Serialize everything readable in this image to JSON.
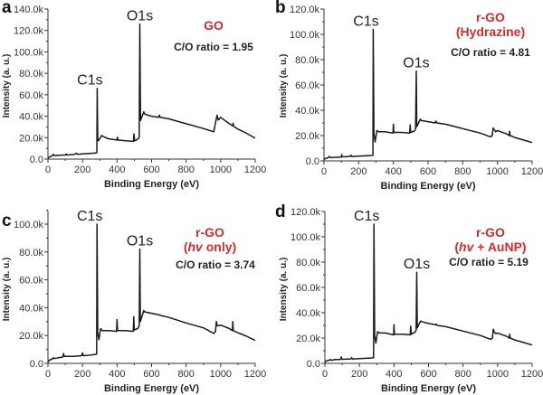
{
  "chart_data": [
    {
      "type": "line",
      "panel": "a",
      "title": "GO",
      "title_lines": [
        "GO"
      ],
      "annotation": "C/O ratio = 1.95",
      "xlabel": "Binding Energy (eV)",
      "ylabel": "Intensity (a. u.)",
      "xlim": [
        0,
        1200
      ],
      "ylim": [
        0,
        140000
      ],
      "xticks": [
        0,
        200,
        400,
        600,
        800,
        1000,
        1200
      ],
      "yticks": [
        0,
        20000,
        40000,
        60000,
        80000,
        100000,
        120000,
        140000
      ],
      "ytick_labels": [
        "0.0",
        "20.0k",
        "40.0k",
        "60.0k",
        "80.0k",
        "100.0k",
        "120.0k",
        "140.0k"
      ],
      "peaks": [
        {
          "label": "C1s",
          "x": 285,
          "y": 66000
        },
        {
          "label": "O1s",
          "x": 532,
          "y": 126000
        }
      ],
      "series": [
        {
          "name": "GO",
          "x": [
            0,
            10,
            25,
            30,
            40,
            60,
            100,
            105,
            110,
            150,
            165,
            170,
            200,
            240,
            270,
            283,
            285,
            288,
            292,
            300,
            310,
            320,
            350,
            400,
            402,
            405,
            450,
            495,
            498,
            502,
            510,
            528,
            532,
            536,
            545,
            555,
            560,
            600,
            640,
            645,
            650,
            700,
            800,
            900,
            960,
            975,
            980,
            985,
            990,
            1000,
            1050,
            1070,
            1072,
            1075,
            1100,
            1150,
            1200
          ],
          "y": [
            1000,
            2000,
            3000,
            4500,
            3000,
            3500,
            3800,
            4800,
            3800,
            4200,
            5500,
            4500,
            4800,
            5200,
            5600,
            6000,
            66000,
            20000,
            17000,
            19000,
            22000,
            21000,
            19000,
            17800,
            20500,
            17800,
            17000,
            16500,
            23500,
            17000,
            17500,
            20000,
            126000,
            36000,
            40000,
            44000,
            42000,
            40000,
            39000,
            41000,
            39000,
            37500,
            33000,
            28500,
            25500,
            38000,
            41000,
            36500,
            37000,
            39000,
            33000,
            31000,
            33500,
            30500,
            28000,
            24000,
            19500
          ]
        }
      ]
    },
    {
      "type": "line",
      "panel": "b",
      "title": "r-GO (Hydrazine)",
      "title_lines": [
        "r-GO",
        "(Hydrazine)"
      ],
      "annotation": "C/O ratio = 4.81",
      "xlabel": "Binding Energy (eV)",
      "ylabel": "Intensity (a. u.)",
      "xlim": [
        0,
        1200
      ],
      "ylim": [
        0,
        120000
      ],
      "xticks": [
        0,
        200,
        400,
        600,
        800,
        1000,
        1200
      ],
      "yticks": [
        0,
        20000,
        40000,
        60000,
        80000,
        100000,
        120000
      ],
      "ytick_labels": [
        "0.0",
        "20.0k",
        "40.0k",
        "60.0k",
        "80.0k",
        "100.0k",
        "120.0k"
      ],
      "peaks": [
        {
          "label": "C1s",
          "x": 284,
          "y": 104000
        },
        {
          "label": "O1s",
          "x": 532,
          "y": 71000
        }
      ],
      "series": [
        {
          "name": "r-GO (Hydrazine)",
          "x": [
            0,
            10,
            25,
            30,
            40,
            60,
            100,
            102,
            105,
            150,
            155,
            160,
            200,
            240,
            275,
            282,
            284,
            288,
            295,
            305,
            315,
            350,
            398,
            400,
            403,
            450,
            494,
            497,
            500,
            520,
            528,
            532,
            535,
            545,
            555,
            560,
            600,
            640,
            645,
            650,
            700,
            800,
            900,
            960,
            970,
            975,
            980,
            990,
            1000,
            1050,
            1068,
            1070,
            1073,
            1100,
            1150,
            1200
          ],
          "y": [
            1000,
            2000,
            2500,
            3500,
            2500,
            2800,
            3000,
            5000,
            3200,
            3500,
            4500,
            3500,
            3800,
            4000,
            4300,
            4500,
            104000,
            22000,
            15000,
            24000,
            23000,
            23000,
            22000,
            29000,
            22500,
            22500,
            22000,
            28500,
            22500,
            23500,
            25000,
            71000,
            27000,
            30000,
            33000,
            32000,
            31000,
            30000,
            31500,
            30000,
            29000,
            25500,
            22000,
            19000,
            20000,
            26000,
            25000,
            23000,
            24000,
            21500,
            20000,
            23500,
            20000,
            18500,
            16500,
            14500
          ]
        }
      ]
    },
    {
      "type": "line",
      "panel": "c",
      "title": "r-GO (hv only)",
      "title_lines": [
        "r-GO",
        "(hv only)"
      ],
      "annotation": "C/O ratio = 3.74",
      "xlabel": "Binding Energy (eV)",
      "ylabel": "Intensity (a. u.)",
      "xlim": [
        0,
        1200
      ],
      "ylim": [
        0,
        110000
      ],
      "xticks": [
        0,
        200,
        400,
        600,
        800,
        1000,
        1200
      ],
      "yticks": [
        0,
        20000,
        40000,
        60000,
        80000,
        100000
      ],
      "ytick_labels": [
        "0.0",
        "20.0k",
        "40.0k",
        "60.0k",
        "80.0k",
        "100.0k"
      ],
      "peaks": [
        {
          "label": "C1s",
          "x": 284,
          "y": 100000
        },
        {
          "label": "O1s",
          "x": 532,
          "y": 82000
        }
      ],
      "series": [
        {
          "name": "r-GO (hv only)",
          "x": [
            0,
            10,
            25,
            30,
            40,
            60,
            85,
            90,
            95,
            150,
            195,
            200,
            205,
            250,
            275,
            282,
            284,
            288,
            295,
            305,
            315,
            350,
            397,
            400,
            403,
            450,
            494,
            497,
            500,
            520,
            528,
            532,
            535,
            545,
            555,
            560,
            600,
            640,
            650,
            700,
            800,
            900,
            960,
            970,
            975,
            980,
            990,
            1000,
            1050,
            1068,
            1070,
            1073,
            1100,
            1150,
            1200
          ],
          "y": [
            1000,
            2500,
            3000,
            4000,
            3500,
            4000,
            4500,
            7000,
            5000,
            5000,
            5500,
            7500,
            5500,
            6000,
            6500,
            6500,
            100000,
            22000,
            17000,
            25000,
            23500,
            23500,
            23000,
            31500,
            23500,
            23500,
            23000,
            33500,
            24000,
            25000,
            27000,
            82000,
            30000,
            34000,
            38000,
            37000,
            36000,
            35000,
            34500,
            33000,
            29000,
            25500,
            21500,
            23000,
            30000,
            27000,
            27000,
            27500,
            25000,
            23500,
            30000,
            23500,
            22000,
            19500,
            16500
          ]
        }
      ]
    },
    {
      "type": "line",
      "panel": "d",
      "title": "r-GO (hv + AuNP)",
      "title_lines": [
        "r-GO",
        "(hv + AuNP)"
      ],
      "annotation": "C/O ratio = 5.19",
      "xlabel": "Binding Energy (eV)",
      "ylabel": "Intensity (a. u.)",
      "xlim": [
        0,
        1200
      ],
      "ylim": [
        0,
        120000
      ],
      "xticks": [
        0,
        200,
        400,
        600,
        800,
        1000,
        1200
      ],
      "yticks": [
        0,
        20000,
        40000,
        60000,
        80000,
        100000,
        120000
      ],
      "ytick_labels": [
        "0.0",
        "20.0k",
        "40.0k",
        "60.0k",
        "80.0k",
        "100.0k",
        "120.0k"
      ],
      "peaks": [
        {
          "label": "C1s",
          "x": 284,
          "y": 110000
        },
        {
          "label": "O1s",
          "x": 532,
          "y": 72000
        }
      ],
      "series": [
        {
          "name": "r-GO (hv + AuNP)",
          "x": [
            0,
            10,
            25,
            30,
            40,
            60,
            90,
            95,
            100,
            150,
            155,
            160,
            200,
            240,
            275,
            282,
            284,
            288,
            295,
            305,
            315,
            350,
            398,
            400,
            403,
            450,
            494,
            497,
            500,
            520,
            528,
            532,
            535,
            545,
            555,
            560,
            600,
            640,
            645,
            650,
            700,
            800,
            900,
            960,
            970,
            975,
            980,
            990,
            1000,
            1050,
            1068,
            1070,
            1073,
            1100,
            1150,
            1200
          ],
          "y": [
            1000,
            2000,
            2500,
            3000,
            2500,
            3000,
            3000,
            5000,
            3200,
            3500,
            4500,
            3500,
            3800,
            4000,
            4300,
            4500,
            110000,
            22000,
            16000,
            25000,
            24000,
            24000,
            22500,
            30500,
            23000,
            23000,
            22500,
            29500,
            23000,
            24500,
            26000,
            72000,
            28000,
            31000,
            33500,
            33000,
            31500,
            30500,
            31000,
            30000,
            29000,
            25500,
            22000,
            19000,
            20000,
            27000,
            25000,
            23500,
            24000,
            21500,
            20000,
            23000,
            20000,
            18500,
            16500,
            14500
          ]
        }
      ]
    }
  ]
}
